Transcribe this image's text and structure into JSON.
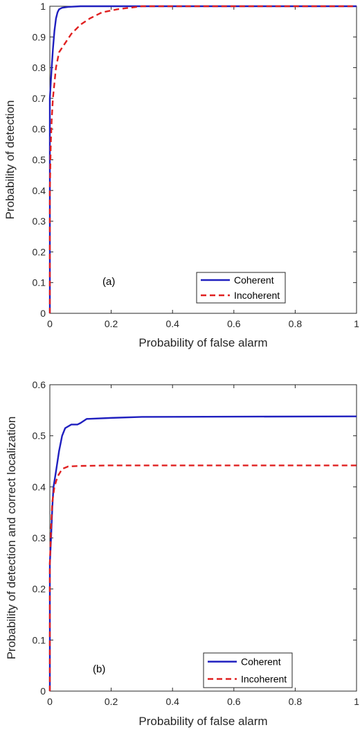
{
  "chart_data": [
    {
      "type": "line",
      "panel": "(a)",
      "xlabel": "Probability of false alarm",
      "ylabel": "Probability of detection",
      "xlim": [
        0,
        1
      ],
      "ylim": [
        0,
        1
      ],
      "xticks": [
        "0",
        "0.2",
        "0.4",
        "0.6",
        "0.8",
        "1"
      ],
      "yticks": [
        "0",
        "0.1",
        "0.2",
        "0.3",
        "0.4",
        "0.5",
        "0.6",
        "0.7",
        "0.8",
        "0.9",
        "1"
      ],
      "annotation": "(a)",
      "legend_position": "bottom-right",
      "series": [
        {
          "name": "Coherent",
          "color": "#1f1fbf",
          "style": "solid",
          "points": [
            [
              0,
              0
            ],
            [
              0,
              0.7
            ],
            [
              0.003,
              0.75
            ],
            [
              0.006,
              0.8
            ],
            [
              0.01,
              0.86
            ],
            [
              0.015,
              0.92
            ],
            [
              0.02,
              0.96
            ],
            [
              0.025,
              0.98
            ],
            [
              0.03,
              0.99
            ],
            [
              0.04,
              0.995
            ],
            [
              0.06,
              0.998
            ],
            [
              0.1,
              1.0
            ],
            [
              1,
              1.0
            ]
          ]
        },
        {
          "name": "Incoherent",
          "color": "#e02020",
          "style": "dashed",
          "points": [
            [
              0,
              0
            ],
            [
              0,
              0.4
            ],
            [
              0.003,
              0.55
            ],
            [
              0.006,
              0.63
            ],
            [
              0.01,
              0.7
            ],
            [
              0.015,
              0.75
            ],
            [
              0.02,
              0.8
            ],
            [
              0.03,
              0.85
            ],
            [
              0.05,
              0.88
            ],
            [
              0.07,
              0.91
            ],
            [
              0.1,
              0.94
            ],
            [
              0.13,
              0.96
            ],
            [
              0.17,
              0.98
            ],
            [
              0.22,
              0.99
            ],
            [
              0.3,
              1.0
            ],
            [
              1,
              1.0
            ]
          ]
        }
      ]
    },
    {
      "type": "line",
      "panel": "(b)",
      "xlabel": "Probability of false alarm",
      "ylabel": "Probability of detection and correct localization",
      "xlim": [
        0,
        1
      ],
      "ylim": [
        0,
        0.6
      ],
      "xticks": [
        "0",
        "0.2",
        "0.4",
        "0.6",
        "0.8",
        "1"
      ],
      "yticks": [
        "0",
        "0.1",
        "0.2",
        "0.3",
        "0.4",
        "0.5",
        "0.6"
      ],
      "annotation": "(b)",
      "legend_position": "bottom-right",
      "series": [
        {
          "name": "Coherent",
          "color": "#1f1fbf",
          "style": "solid",
          "points": [
            [
              0,
              0
            ],
            [
              0,
              0.25
            ],
            [
              0.004,
              0.3
            ],
            [
              0.008,
              0.36
            ],
            [
              0.012,
              0.4
            ],
            [
              0.02,
              0.43
            ],
            [
              0.03,
              0.47
            ],
            [
              0.04,
              0.5
            ],
            [
              0.05,
              0.515
            ],
            [
              0.07,
              0.522
            ],
            [
              0.09,
              0.522
            ],
            [
              0.1,
              0.525
            ],
            [
              0.12,
              0.533
            ],
            [
              0.2,
              0.535
            ],
            [
              0.3,
              0.537
            ],
            [
              1,
              0.538
            ]
          ]
        },
        {
          "name": "Incoherent",
          "color": "#e02020",
          "style": "dashed",
          "points": [
            [
              0,
              0
            ],
            [
              0,
              0.25
            ],
            [
              0.004,
              0.32
            ],
            [
              0.008,
              0.37
            ],
            [
              0.015,
              0.4
            ],
            [
              0.025,
              0.42
            ],
            [
              0.04,
              0.435
            ],
            [
              0.06,
              0.44
            ],
            [
              0.1,
              0.441
            ],
            [
              0.2,
              0.442
            ],
            [
              1,
              0.442
            ]
          ]
        }
      ]
    }
  ]
}
